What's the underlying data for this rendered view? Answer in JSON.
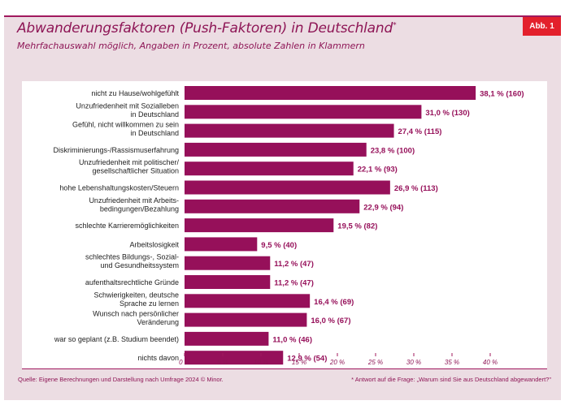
{
  "badge": "Abb. 1",
  "title": "Abwanderungsfaktoren (Push-Faktoren) in Deutschland",
  "title_mark": "*",
  "subtitle": "Mehrfachauswahl möglich, Angaben in Prozent, absolute Zahlen in Klammern",
  "source": "Quelle: Eigene Berechnungen und Darstellung nach Umfrage 2024 © Minor.",
  "footnote": "* Antwort auf die Frage: „Warum sind Sie aus Deutschland abgewandert?\"",
  "colors": {
    "bar": "#96105a",
    "label": "#96105a",
    "background": "#ecdde3",
    "badge": "#e3202c"
  },
  "chart_data": {
    "type": "bar",
    "orientation": "horizontal",
    "categories": [
      [
        "nicht zu Hause/wohlgefühlt"
      ],
      [
        "Unzufriedenheit mit Sozialleben",
        "in Deutschland"
      ],
      [
        "Gefühl, nicht willkommen zu sein",
        "in Deutschland"
      ],
      [
        "Diskriminierungs-/Rassismuserfahrung"
      ],
      [
        "Unzufriedenheit mit politischer/",
        "gesellschaftlicher Situation"
      ],
      [
        "hohe Lebenshaltungskosten/Steuern"
      ],
      [
        "Unzufriedenheit mit Arbeits-",
        "bedingungen/Bezahlung"
      ],
      [
        "schlechte Karrieremöglichkeiten"
      ],
      [
        "Arbeitslosigkeit"
      ],
      [
        "schlechtes Bildungs-, Sozial-",
        "und Gesundheitssystem"
      ],
      [
        "aufenthaltsrechtliche Gründe"
      ],
      [
        "Schwierigkeiten, deutsche",
        "Sprache zu lernen"
      ],
      [
        "Wunsch nach persönlicher",
        "Veränderung"
      ],
      [
        "war so geplant (z.B. Studium beendet)"
      ],
      [
        "nichts davon"
      ]
    ],
    "values": [
      38.1,
      31.0,
      27.4,
      23.8,
      22.1,
      26.9,
      22.9,
      19.5,
      9.5,
      11.2,
      11.2,
      16.4,
      16.0,
      11.0,
      12.9
    ],
    "counts": [
      160,
      130,
      115,
      100,
      93,
      113,
      94,
      82,
      40,
      47,
      47,
      69,
      67,
      46,
      54
    ],
    "data_labels": [
      "38,1 % (160)",
      "31,0 % (130)",
      "27,4 % (115)",
      "23,8 % (100)",
      "22,1 % (93)",
      "26,9 % (113)",
      "22,9 % (94)",
      "19,5 % (82)",
      "9,5 % (40)",
      "11,2 % (47)",
      "11,2 % (47)",
      "16,4 % (69)",
      "16,0 % (67)",
      "11,0 % (46)",
      "12,9 % (54)"
    ],
    "xticks": [
      "0 %",
      "5 %",
      "10 %",
      "15 %",
      "20 %",
      "25 %",
      "30 %",
      "35 %",
      "40 %"
    ],
    "xlim": [
      0,
      40
    ],
    "grid": false
  }
}
